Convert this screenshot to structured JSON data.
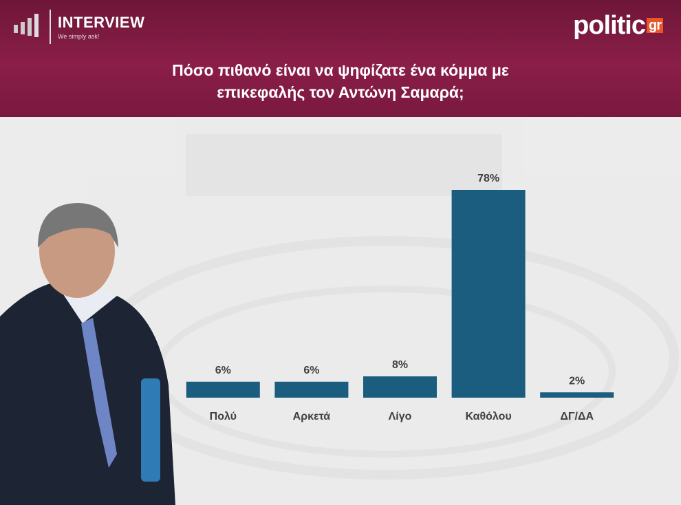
{
  "brand": {
    "name": "INTERVIEW",
    "tagline": "We simply ask!",
    "logo": "politic",
    "logo_suffix": "gr"
  },
  "chart_data": {
    "type": "bar",
    "title": "Πόσο πιθανό είναι να ψηφίζατε ένα κόμμα με επικεφαλής τον Αντώνη Σαμαρά;",
    "categories": [
      "Πολύ",
      "Αρκετά",
      "Λίγο",
      "Καθόλου",
      "ΔΓ/ΔΑ"
    ],
    "values": [
      6,
      6,
      8,
      78,
      2
    ],
    "value_labels": [
      "6%",
      "6%",
      "8%",
      "78%",
      "2%"
    ],
    "color": "#1b5d7e"
  }
}
